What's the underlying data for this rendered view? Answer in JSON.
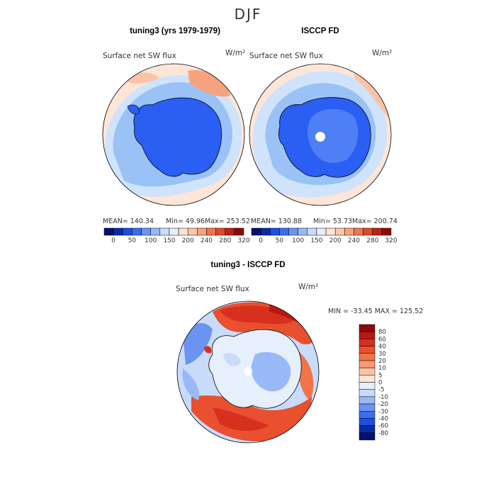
{
  "page_title": "DJF",
  "colors": {
    "ice": "#2b5ef2",
    "ocean_light": "#cfe3fb",
    "ocean_mid": "#9ac2f6",
    "warm_light": "#fde3d2",
    "warm_mid": "#f7a27f",
    "hot": "#d7301f",
    "white": "#ffffff"
  },
  "chart_data": [
    {
      "type": "heatmap",
      "projection": "south-polar-stereographic",
      "title": "tuning3 (yrs 1979-1979)",
      "field_label": "Surface net SW flux",
      "units": "W/m²",
      "stats": {
        "mean": "MEAN= 140.34",
        "min": "Min=   49.96",
        "max": "Max= 253.52"
      },
      "colorbar": {
        "orientation": "horizontal",
        "tick_labels": [
          "0",
          "50",
          "100",
          "150",
          "200",
          "240",
          "280",
          "320"
        ],
        "colors": [
          "#08106e",
          "#0a2aa8",
          "#1f4fe0",
          "#3a6ef0",
          "#6a94f4",
          "#98b9f7",
          "#c9dcfb",
          "#e6effc",
          "#fde3d2",
          "#fbc6aa",
          "#f7a27f",
          "#ee7650",
          "#dd4a2c",
          "#bd2015",
          "#8e0a0a"
        ]
      }
    },
    {
      "type": "heatmap",
      "projection": "south-polar-stereographic",
      "title": "ISCCP FD",
      "field_label": "Surface net SW flux",
      "units": "W/m²",
      "stats": {
        "mean": "MEAN= 130.88",
        "min": "Min=   53.73",
        "max": "Max= 200.74"
      },
      "colorbar": {
        "orientation": "horizontal",
        "tick_labels": [
          "0",
          "50",
          "100",
          "150",
          "200",
          "240",
          "280",
          "320"
        ],
        "colors": [
          "#08106e",
          "#0a2aa8",
          "#1f4fe0",
          "#3a6ef0",
          "#6a94f4",
          "#98b9f7",
          "#c9dcfb",
          "#e6effc",
          "#fde3d2",
          "#fbc6aa",
          "#f7a27f",
          "#ee7650",
          "#dd4a2c",
          "#bd2015",
          "#8e0a0a"
        ]
      }
    },
    {
      "type": "heatmap",
      "projection": "south-polar-stereographic",
      "title": "tuning3 - ISCCP FD",
      "field_label": "Surface net SW flux",
      "units": "W/m²",
      "stats": {
        "minmax": "MIN = -33.45  MAX = 125.52"
      },
      "colorbar": {
        "orientation": "vertical",
        "tick_labels": [
          "80",
          "60",
          "40",
          "30",
          "20",
          "10",
          "5",
          "0",
          "-5",
          "-10",
          "-20",
          "-30",
          "-40",
          "-60",
          "-80"
        ],
        "colors": [
          "#8e0a0a",
          "#b81a12",
          "#d7301f",
          "#e8502f",
          "#f27447",
          "#f79a70",
          "#fbc3a5",
          "#fde6d8",
          "#e6effc",
          "#c8dbfa",
          "#98b9f6",
          "#6a94f2",
          "#3a6ef0",
          "#1f4fe0",
          "#0a2aa8",
          "#08106e"
        ]
      }
    }
  ]
}
